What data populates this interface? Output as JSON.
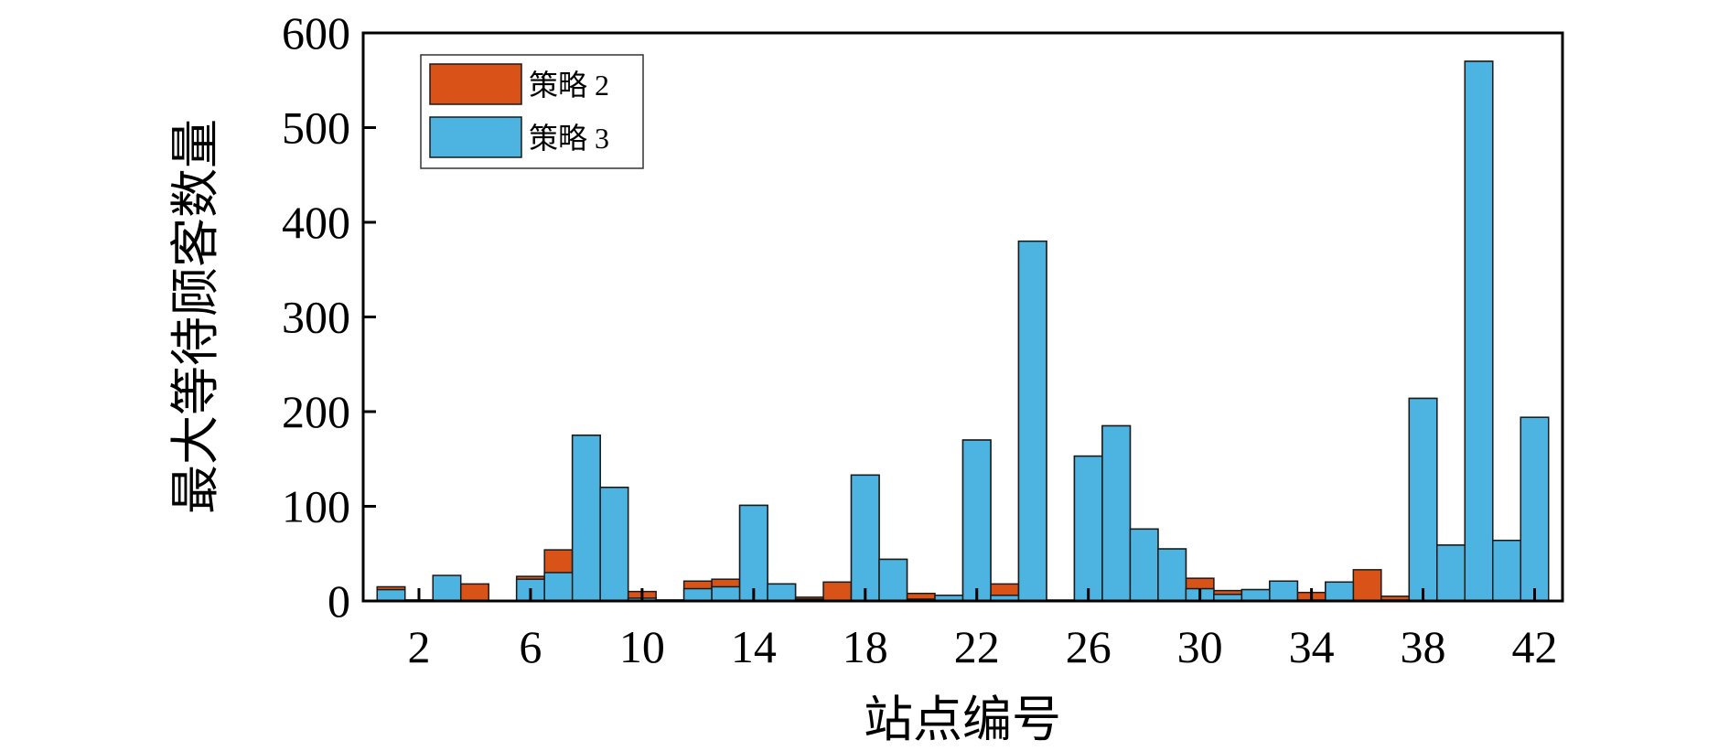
{
  "chart_data": {
    "type": "bar",
    "mode": "overlaid",
    "title": "",
    "xlabel": "站点编号",
    "ylabel": "最大等待顾客数量",
    "xlim": [
      0,
      43
    ],
    "ylim": [
      0,
      600
    ],
    "xticks": [
      2,
      6,
      10,
      14,
      18,
      22,
      26,
      30,
      34,
      38,
      42
    ],
    "yticks": [
      0,
      100,
      200,
      300,
      400,
      500,
      600
    ],
    "grid": false,
    "legend_position": "top-left",
    "categories": [
      1,
      2,
      3,
      4,
      5,
      6,
      7,
      8,
      9,
      10,
      11,
      12,
      13,
      14,
      15,
      16,
      17,
      18,
      19,
      20,
      21,
      22,
      23,
      24,
      25,
      26,
      27,
      28,
      29,
      30,
      31,
      32,
      33,
      34,
      35,
      36,
      37,
      38,
      39,
      40,
      41,
      42
    ],
    "series": [
      {
        "name": "策略 2",
        "color": "#D95319",
        "values": [
          15,
          1,
          0,
          18,
          0,
          26,
          54,
          175,
          120,
          10,
          1,
          21,
          23,
          101,
          18,
          4,
          20,
          133,
          44,
          8,
          1,
          170,
          18,
          380,
          0,
          153,
          185,
          76,
          55,
          24,
          11,
          12,
          21,
          9,
          20,
          33,
          5,
          214,
          59,
          570,
          64,
          194
        ]
      },
      {
        "name": "策略 3",
        "color": "#4DB3E0",
        "values": [
          12,
          1,
          27,
          0,
          0,
          23,
          30,
          175,
          120,
          3,
          1,
          13,
          15,
          101,
          18,
          2,
          0,
          133,
          44,
          2,
          6,
          170,
          6,
          380,
          1,
          153,
          185,
          76,
          55,
          13,
          7,
          12,
          21,
          1,
          20,
          0,
          1,
          214,
          59,
          570,
          64,
          194
        ]
      }
    ]
  }
}
